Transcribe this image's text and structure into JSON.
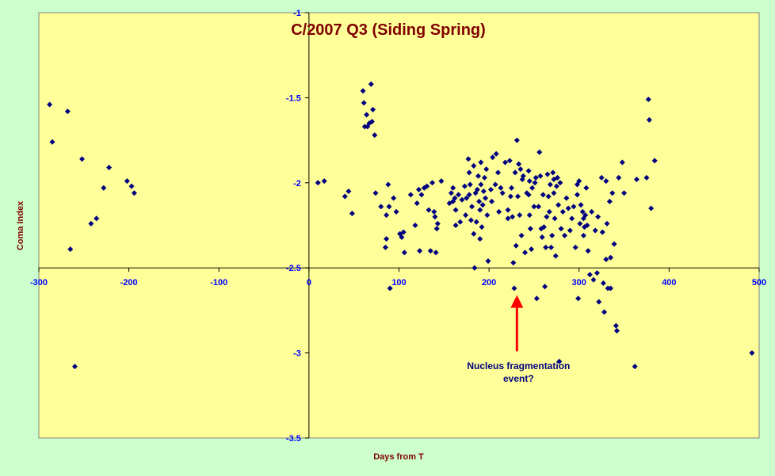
{
  "chart_data": {
    "type": "scatter",
    "title": "C/2007 Q3 (Siding Spring)",
    "xlabel": "Days from T",
    "ylabel": "Coma Index",
    "xlim": [
      -300,
      500
    ],
    "ylim": [
      -3.5,
      -1
    ],
    "x_ticks": [
      -300,
      -200,
      -100,
      0,
      100,
      200,
      300,
      400,
      500
    ],
    "y_ticks": [
      -1,
      -1.5,
      -2,
      -2.5,
      -3,
      -3.5
    ],
    "x_tick_labels": [
      "-300",
      "-200",
      "-100",
      "0",
      "100",
      "200",
      "300",
      "400",
      "500"
    ],
    "y_tick_labels": [
      "-1",
      "-1.5",
      "-2",
      "-2.5",
      "-3",
      "-3.5"
    ],
    "grid": false,
    "legend": "none",
    "colors": {
      "plot_bg": "#ffff99",
      "page_bg": "#ccffcc",
      "marker": "#000080",
      "arrow": "#ff0000",
      "title": "#800000",
      "ticks": "#0000ff"
    },
    "annotation": {
      "line1": "Nucleus fragmentation",
      "line2": "event?",
      "arrow_from": [
        231,
        -2.99
      ],
      "arrow_to": [
        231,
        -2.66
      ]
    },
    "series": [
      {
        "values": [
          [
            -288,
            -1.54
          ],
          [
            -285,
            -1.76
          ],
          [
            -268,
            -1.58
          ],
          [
            -265,
            -2.39
          ],
          [
            -260,
            -3.08
          ],
          [
            -252,
            -1.86
          ],
          [
            -242,
            -2.24
          ],
          [
            -236,
            -2.21
          ],
          [
            -228,
            -2.03
          ],
          [
            -222,
            -1.91
          ],
          [
            -202,
            -1.99
          ],
          [
            -197,
            -2.02
          ],
          [
            -194,
            -2.06
          ],
          [
            10,
            -2.0
          ],
          [
            17,
            -1.99
          ],
          [
            40,
            -2.08
          ],
          [
            44,
            -2.05
          ],
          [
            48,
            -2.18
          ],
          [
            60,
            -1.46
          ],
          [
            61,
            -1.53
          ],
          [
            62,
            -1.67
          ],
          [
            64,
            -1.6
          ],
          [
            65,
            -1.67
          ],
          [
            67,
            -1.65
          ],
          [
            69,
            -1.42
          ],
          [
            70,
            -1.64
          ],
          [
            71,
            -1.57
          ],
          [
            73,
            -1.72
          ],
          [
            74,
            -2.06
          ],
          [
            80,
            -2.14
          ],
          [
            85,
            -2.38
          ],
          [
            86,
            -2.33
          ],
          [
            86,
            -2.19
          ],
          [
            88,
            -2.01
          ],
          [
            89,
            -2.14
          ],
          [
            90,
            -2.62
          ],
          [
            94,
            -2.09
          ],
          [
            97,
            -2.17
          ],
          [
            101,
            -2.3
          ],
          [
            103,
            -2.32
          ],
          [
            105,
            -2.29
          ],
          [
            106,
            -2.41
          ],
          [
            113,
            -2.07
          ],
          [
            118,
            -2.25
          ],
          [
            120,
            -2.12
          ],
          [
            122,
            -2.04
          ],
          [
            123,
            -2.4
          ],
          [
            125,
            -2.07
          ],
          [
            128,
            -2.03
          ],
          [
            131,
            -2.02
          ],
          [
            133,
            -2.16
          ],
          [
            135,
            -2.4
          ],
          [
            137,
            -2.0
          ],
          [
            139,
            -2.17
          ],
          [
            140,
            -2.2
          ],
          [
            141,
            -2.41
          ],
          [
            142,
            -2.27
          ],
          [
            143,
            -2.24
          ],
          [
            147,
            -1.99
          ],
          [
            156,
            -2.12
          ],
          [
            158,
            -2.06
          ],
          [
            160,
            -2.03
          ],
          [
            160,
            -2.11
          ],
          [
            162,
            -2.09
          ],
          [
            163,
            -2.16
          ],
          [
            163,
            -2.25
          ],
          [
            166,
            -2.07
          ],
          [
            168,
            -2.23
          ],
          [
            170,
            -2.1
          ],
          [
            173,
            -2.02
          ],
          [
            174,
            -2.19
          ],
          [
            175,
            -2.09
          ],
          [
            177,
            -1.86
          ],
          [
            178,
            -1.94
          ],
          [
            178,
            -2.07
          ],
          [
            179,
            -2.01
          ],
          [
            180,
            -2.22
          ],
          [
            181,
            -2.14
          ],
          [
            183,
            -2.3
          ],
          [
            183,
            -1.9
          ],
          [
            184,
            -2.5
          ],
          [
            185,
            -2.06
          ],
          [
            186,
            -2.23
          ],
          [
            187,
            -2.04
          ],
          [
            188,
            -1.96
          ],
          [
            189,
            -2.11
          ],
          [
            190,
            -2.16
          ],
          [
            190,
            -2.33
          ],
          [
            191,
            -1.88
          ],
          [
            191,
            -2.01
          ],
          [
            192,
            -2.26
          ],
          [
            193,
            -2.13
          ],
          [
            194,
            -2.05
          ],
          [
            195,
            -1.97
          ],
          [
            196,
            -2.09
          ],
          [
            197,
            -1.92
          ],
          [
            198,
            -2.19
          ],
          [
            199,
            -2.46
          ],
          [
            202,
            -2.04
          ],
          [
            203,
            -2.11
          ],
          [
            204,
            -1.85
          ],
          [
            207,
            -2.01
          ],
          [
            208,
            -1.83
          ],
          [
            210,
            -1.94
          ],
          [
            211,
            -2.17
          ],
          [
            215,
            -2.06
          ],
          [
            218,
            -1.88
          ],
          [
            221,
            -2.16
          ],
          [
            223,
            -1.87
          ],
          [
            224,
            -2.08
          ],
          [
            225,
            -2.03
          ],
          [
            226,
            -2.2
          ],
          [
            227,
            -2.47
          ],
          [
            228,
            -2.62
          ],
          [
            229,
            -1.94
          ],
          [
            230,
            -2.37
          ],
          [
            231,
            -1.75
          ],
          [
            232,
            -2.08
          ],
          [
            233,
            -1.89
          ],
          [
            234,
            -2.19
          ],
          [
            235,
            -1.92
          ],
          [
            236,
            -2.31
          ],
          [
            237,
            -1.98
          ],
          [
            238,
            -1.96
          ],
          [
            240,
            -2.41
          ],
          [
            242,
            -2.06
          ],
          [
            244,
            -1.93
          ],
          [
            245,
            -2.19
          ],
          [
            246,
            -2.27
          ],
          [
            247,
            -2.39
          ],
          [
            248,
            -2.03
          ],
          [
            250,
            -2.14
          ],
          [
            251,
            -2.0
          ],
          [
            252,
            -1.97
          ],
          [
            253,
            -2.68
          ],
          [
            255,
            -2.14
          ],
          [
            256,
            -1.82
          ],
          [
            257,
            -1.96
          ],
          [
            259,
            -2.32
          ],
          [
            260,
            -2.07
          ],
          [
            261,
            -2.26
          ],
          [
            262,
            -2.61
          ],
          [
            263,
            -2.38
          ],
          [
            264,
            -2.2
          ],
          [
            265,
            -1.95
          ],
          [
            266,
            -2.08
          ],
          [
            267,
            -2.17
          ],
          [
            268,
            -2.01
          ],
          [
            269,
            -2.38
          ],
          [
            270,
            -2.31
          ],
          [
            271,
            -1.94
          ],
          [
            272,
            -2.06
          ],
          [
            273,
            -2.21
          ],
          [
            274,
            -2.43
          ],
          [
            275,
            -2.02
          ],
          [
            276,
            -1.97
          ],
          [
            277,
            -2.13
          ],
          [
            278,
            -3.05
          ],
          [
            279,
            -2.0
          ],
          [
            280,
            -2.27
          ],
          [
            282,
            -2.17
          ],
          [
            284,
            -2.31
          ],
          [
            286,
            -2.09
          ],
          [
            288,
            -2.15
          ],
          [
            290,
            -2.28
          ],
          [
            292,
            -2.21
          ],
          [
            294,
            -2.14
          ],
          [
            296,
            -2.38
          ],
          [
            298,
            -2.07
          ],
          [
            299,
            -2.68
          ],
          [
            300,
            -1.99
          ],
          [
            301,
            -2.24
          ],
          [
            302,
            -2.13
          ],
          [
            304,
            -2.17
          ],
          [
            305,
            -2.21
          ],
          [
            306,
            -2.26
          ],
          [
            307,
            -2.19
          ],
          [
            308,
            -2.03
          ],
          [
            309,
            -2.25
          ],
          [
            310,
            -2.4
          ],
          [
            312,
            -2.54
          ],
          [
            314,
            -2.17
          ],
          [
            316,
            -2.57
          ],
          [
            318,
            -2.28
          ],
          [
            320,
            -2.53
          ],
          [
            321,
            -2.2
          ],
          [
            322,
            -2.7
          ],
          [
            325,
            -1.97
          ],
          [
            326,
            -2.29
          ],
          [
            327,
            -2.59
          ],
          [
            328,
            -2.76
          ],
          [
            330,
            -2.45
          ],
          [
            331,
            -2.24
          ],
          [
            332,
            -2.62
          ],
          [
            334,
            -2.11
          ],
          [
            335,
            -2.44
          ],
          [
            337,
            -2.06
          ],
          [
            339,
            -2.36
          ],
          [
            341,
            -2.84
          ],
          [
            342,
            -2.87
          ],
          [
            344,
            -1.97
          ],
          [
            348,
            -1.88
          ],
          [
            350,
            -2.06
          ],
          [
            362,
            -3.08
          ],
          [
            364,
            -1.98
          ],
          [
            377,
            -1.51
          ],
          [
            378,
            -1.63
          ],
          [
            380,
            -2.15
          ],
          [
            384,
            -1.87
          ],
          [
            492,
            -3.0
          ],
          [
            375,
            -1.97
          ],
          [
            330,
            -1.99
          ],
          [
            335,
            -2.62
          ],
          [
            245,
            -1.99
          ],
          [
            272,
            -1.98
          ],
          [
            298,
            -2.01
          ],
          [
            305,
            -2.31
          ],
          [
            258,
            -2.27
          ],
          [
            213,
            -2.03
          ],
          [
            221,
            -2.21
          ],
          [
            244,
            -2.07
          ]
        ]
      }
    ]
  }
}
